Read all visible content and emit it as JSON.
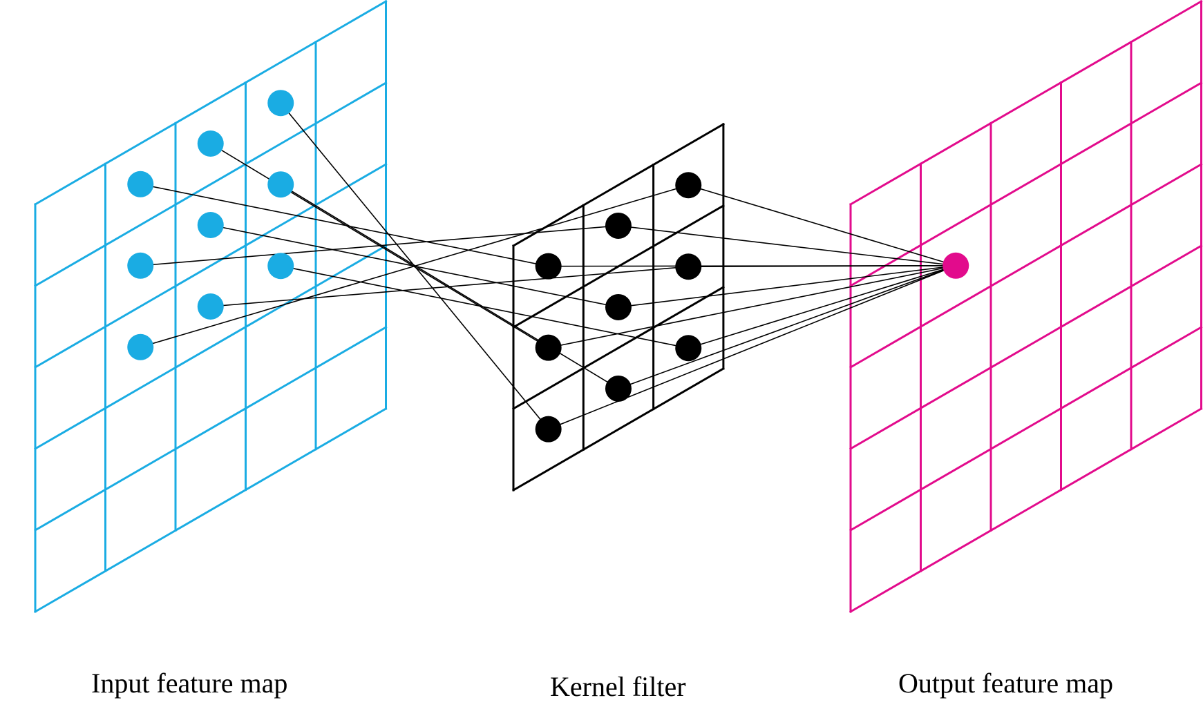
{
  "captions": {
    "input": "Input feature map",
    "kernel": "Kernel filter",
    "output": "Output feature map"
  },
  "colors": {
    "input": "#1aace3",
    "kernel": "#000000",
    "output": "#e20b8c",
    "connection": "#000000"
  },
  "grids": {
    "input": {
      "rows": 5,
      "cols": 5
    },
    "kernel": {
      "rows": 3,
      "cols": 3
    },
    "output": {
      "rows": 5,
      "cols": 5
    }
  },
  "receptive_field": {
    "input_cells": [
      [
        1,
        2
      ],
      [
        1,
        1
      ],
      [
        1,
        0
      ],
      [
        2,
        2
      ],
      [
        2,
        1
      ],
      [
        2,
        0
      ],
      [
        3,
        2
      ],
      [
        3,
        1
      ],
      [
        3,
        0
      ]
    ],
    "output_cell": [
      1,
      1
    ]
  }
}
